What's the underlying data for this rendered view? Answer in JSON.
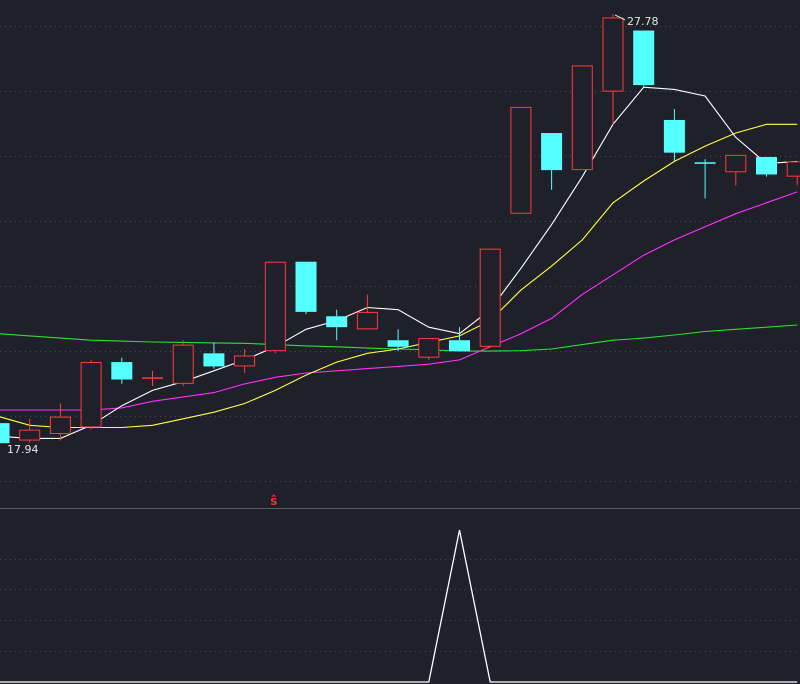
{
  "chart_data": [
    {
      "type": "candlestick",
      "price_range": [
        16.5,
        28.1
      ],
      "grid": true,
      "max_label": "27.78",
      "min_label": "17.94",
      "signal_text": "ŝ",
      "signal_index": 9,
      "colors": {
        "up": "#ff3b3b",
        "down": "#54ffff",
        "ma_fast": "#ffffff",
        "ma_mid": "#ffff40",
        "ma_slow": "#ff30ff",
        "ma_long": "#30e030",
        "grid": "#4a4c58",
        "background": "#1f2029"
      },
      "candles": [
        {
          "open": 18.4,
          "high": 18.6,
          "low": 17.94,
          "close": 17.94
        },
        {
          "open": 18.0,
          "high": 18.5,
          "low": 17.95,
          "close": 18.25
        },
        {
          "open": 18.15,
          "high": 18.85,
          "low": 18.0,
          "close": 18.55
        },
        {
          "open": 18.3,
          "high": 19.85,
          "low": 18.25,
          "close": 19.8
        },
        {
          "open": 19.8,
          "high": 19.9,
          "low": 19.3,
          "close": 19.4
        },
        {
          "open": 19.45,
          "high": 19.6,
          "low": 19.25,
          "close": 19.45
        },
        {
          "open": 19.3,
          "high": 20.3,
          "low": 19.25,
          "close": 20.2
        },
        {
          "open": 20.0,
          "high": 20.25,
          "low": 19.65,
          "close": 19.7
        },
        {
          "open": 19.7,
          "high": 20.1,
          "low": 19.55,
          "close": 19.95
        },
        {
          "open": 20.05,
          "high": 22.1,
          "low": 20.0,
          "close": 22.1
        },
        {
          "open": 22.1,
          "high": 22.1,
          "low": 20.9,
          "close": 20.95
        },
        {
          "open": 20.85,
          "high": 21.0,
          "low": 20.3,
          "close": 20.6
        },
        {
          "open": 20.55,
          "high": 21.35,
          "low": 20.55,
          "close": 20.95
        },
        {
          "open": 20.3,
          "high": 20.55,
          "low": 20.05,
          "close": 20.15
        },
        {
          "open": 19.9,
          "high": 20.35,
          "low": 19.85,
          "close": 20.35
        },
        {
          "open": 20.3,
          "high": 20.6,
          "low": 20.05,
          "close": 20.05
        },
        {
          "open": 20.15,
          "high": 22.4,
          "low": 20.15,
          "close": 22.4
        },
        {
          "open": 23.2,
          "high": 25.65,
          "low": 23.2,
          "close": 25.65
        },
        {
          "open": 25.05,
          "high": 25.05,
          "low": 23.75,
          "close": 24.2
        },
        {
          "open": 24.2,
          "high": 26.6,
          "low": 24.2,
          "close": 26.6
        },
        {
          "open": 26.0,
          "high": 27.78,
          "low": 25.25,
          "close": 27.7
        },
        {
          "open": 27.4,
          "high": 27.4,
          "low": 26.1,
          "close": 26.15
        },
        {
          "open": 25.35,
          "high": 25.6,
          "low": 24.4,
          "close": 24.6
        },
        {
          "open": 24.38,
          "high": 24.45,
          "low": 23.55,
          "close": 24.36
        },
        {
          "open": 24.15,
          "high": 24.55,
          "low": 23.85,
          "close": 24.55
        },
        {
          "open": 24.5,
          "high": 24.5,
          "low": 24.05,
          "close": 24.1
        },
        {
          "open": 24.05,
          "high": 24.4,
          "low": 23.85,
          "close": 24.4
        }
      ],
      "ma_fast": [
        18.1,
        18.05,
        18.05,
        18.35,
        18.8,
        19.15,
        19.35,
        19.6,
        19.85,
        20.15,
        20.55,
        20.75,
        21.05,
        21.0,
        20.6,
        20.45,
        21.0,
        21.95,
        22.95,
        24.05,
        25.25,
        26.1,
        26.05,
        25.9,
        24.95,
        24.35,
        24.4
      ],
      "ma_mid": [
        18.55,
        18.35,
        18.3,
        18.3,
        18.3,
        18.35,
        18.5,
        18.65,
        18.85,
        19.15,
        19.5,
        19.8,
        20.0,
        20.1,
        20.25,
        20.4,
        20.75,
        21.45,
        22.0,
        22.6,
        23.45,
        23.95,
        24.4,
        24.75,
        25.05,
        25.25,
        25.25
      ],
      "ma_slow": [
        18.7,
        18.7,
        18.7,
        18.7,
        18.75,
        18.9,
        19.0,
        19.1,
        19.3,
        19.45,
        19.55,
        19.6,
        19.65,
        19.7,
        19.75,
        19.85,
        20.15,
        20.45,
        20.8,
        21.35,
        21.8,
        22.25,
        22.6,
        22.9,
        23.2,
        23.45,
        23.7
      ],
      "ma_long": [
        20.45,
        20.4,
        20.35,
        20.3,
        20.28,
        20.26,
        20.25,
        20.24,
        20.23,
        20.2,
        20.17,
        20.15,
        20.12,
        20.1,
        20.08,
        20.05,
        20.05,
        20.06,
        20.1,
        20.2,
        20.3,
        20.35,
        20.42,
        20.5,
        20.55,
        20.6,
        20.65
      ]
    },
    {
      "type": "line",
      "indicator_range": [
        0,
        1
      ],
      "values": [
        0,
        0,
        0,
        0,
        0,
        0,
        0,
        0,
        0,
        0,
        0,
        0,
        0,
        0,
        0,
        1,
        0,
        0,
        0,
        0,
        0,
        0,
        0,
        0,
        0,
        0,
        0
      ]
    }
  ]
}
